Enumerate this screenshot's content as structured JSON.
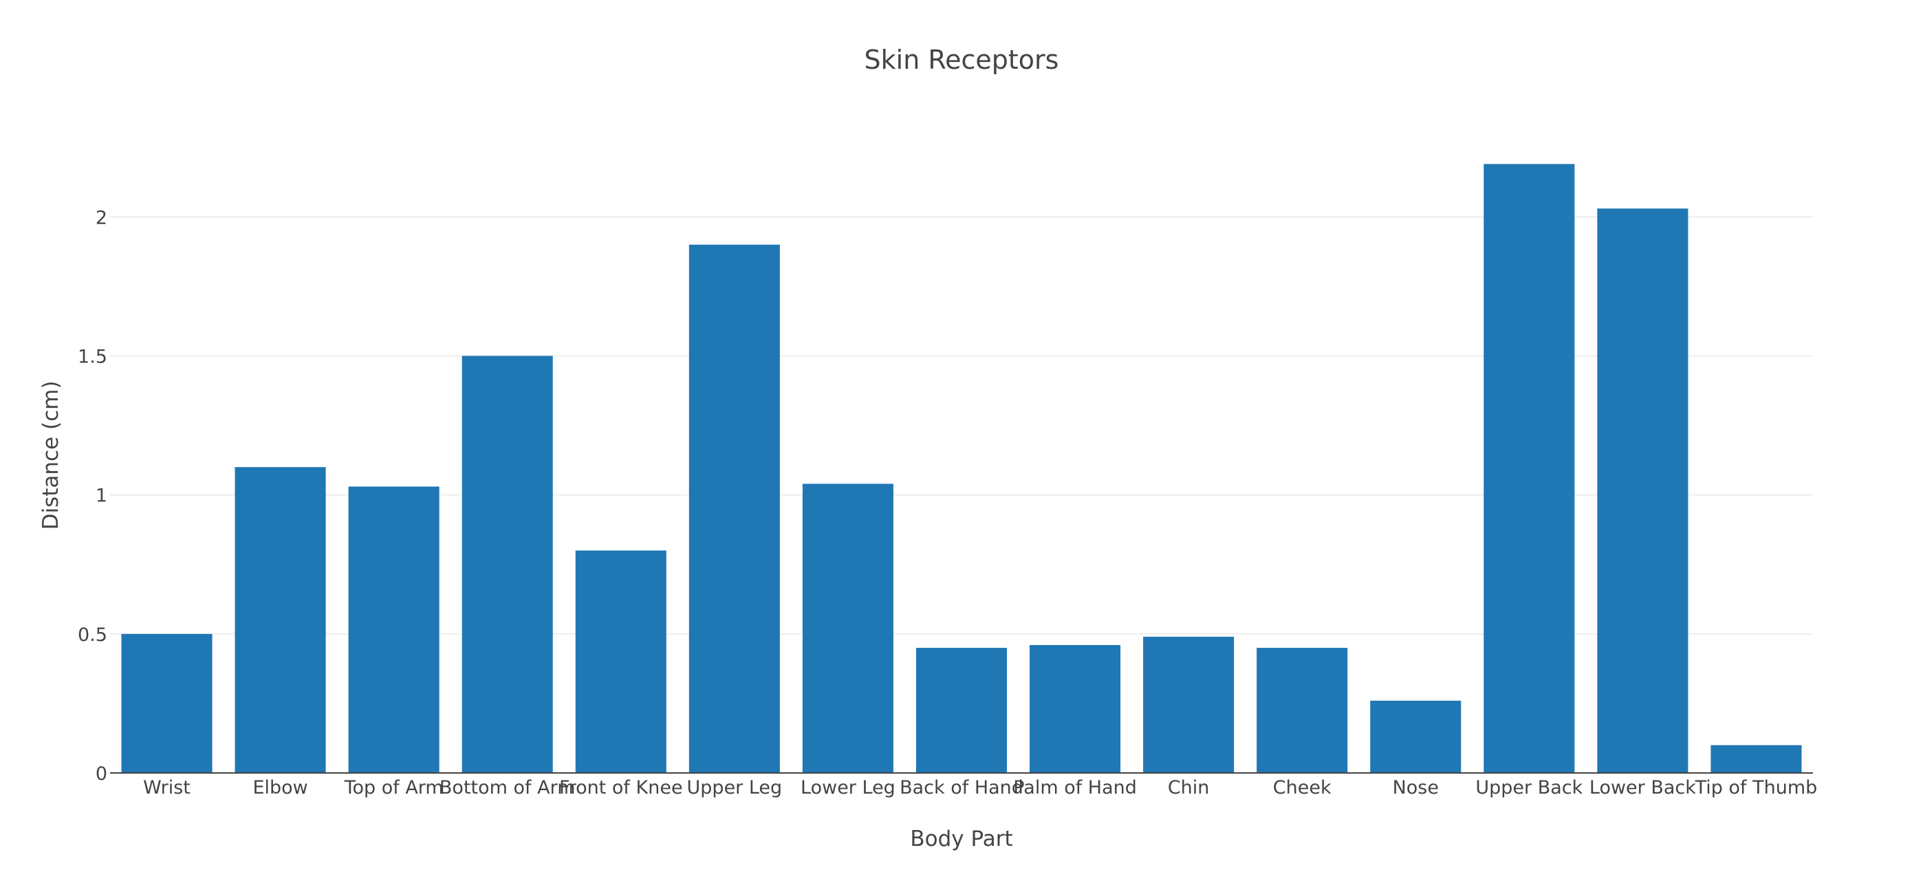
{
  "chart_data": {
    "type": "bar",
    "title": "Skin Receptors",
    "xlabel": "Body Part",
    "ylabel": "Distance (cm)",
    "categories": [
      "Wrist",
      "Elbow",
      "Top of Arm",
      "Bottom of Arm",
      "Front of Knee",
      "Upper Leg",
      "Lower Leg",
      "Back of Hand",
      "Palm of Hand",
      "Chin",
      "Cheek",
      "Nose",
      "Upper Back",
      "Lower Back",
      "Tip of Thumb"
    ],
    "values": [
      0.5,
      1.1,
      1.03,
      1.5,
      0.8,
      1.9,
      1.04,
      0.45,
      0.46,
      0.49,
      0.45,
      0.26,
      2.19,
      2.03,
      0.1
    ],
    "ylim": [
      0,
      2.31
    ],
    "yticks": [
      0,
      0.5,
      1,
      1.5,
      2
    ],
    "ytick_labels": [
      "0",
      "0.5",
      "1",
      "1.5",
      "2"
    ],
    "grid": true,
    "legend": "none",
    "bar_color": "#1f77b4"
  }
}
